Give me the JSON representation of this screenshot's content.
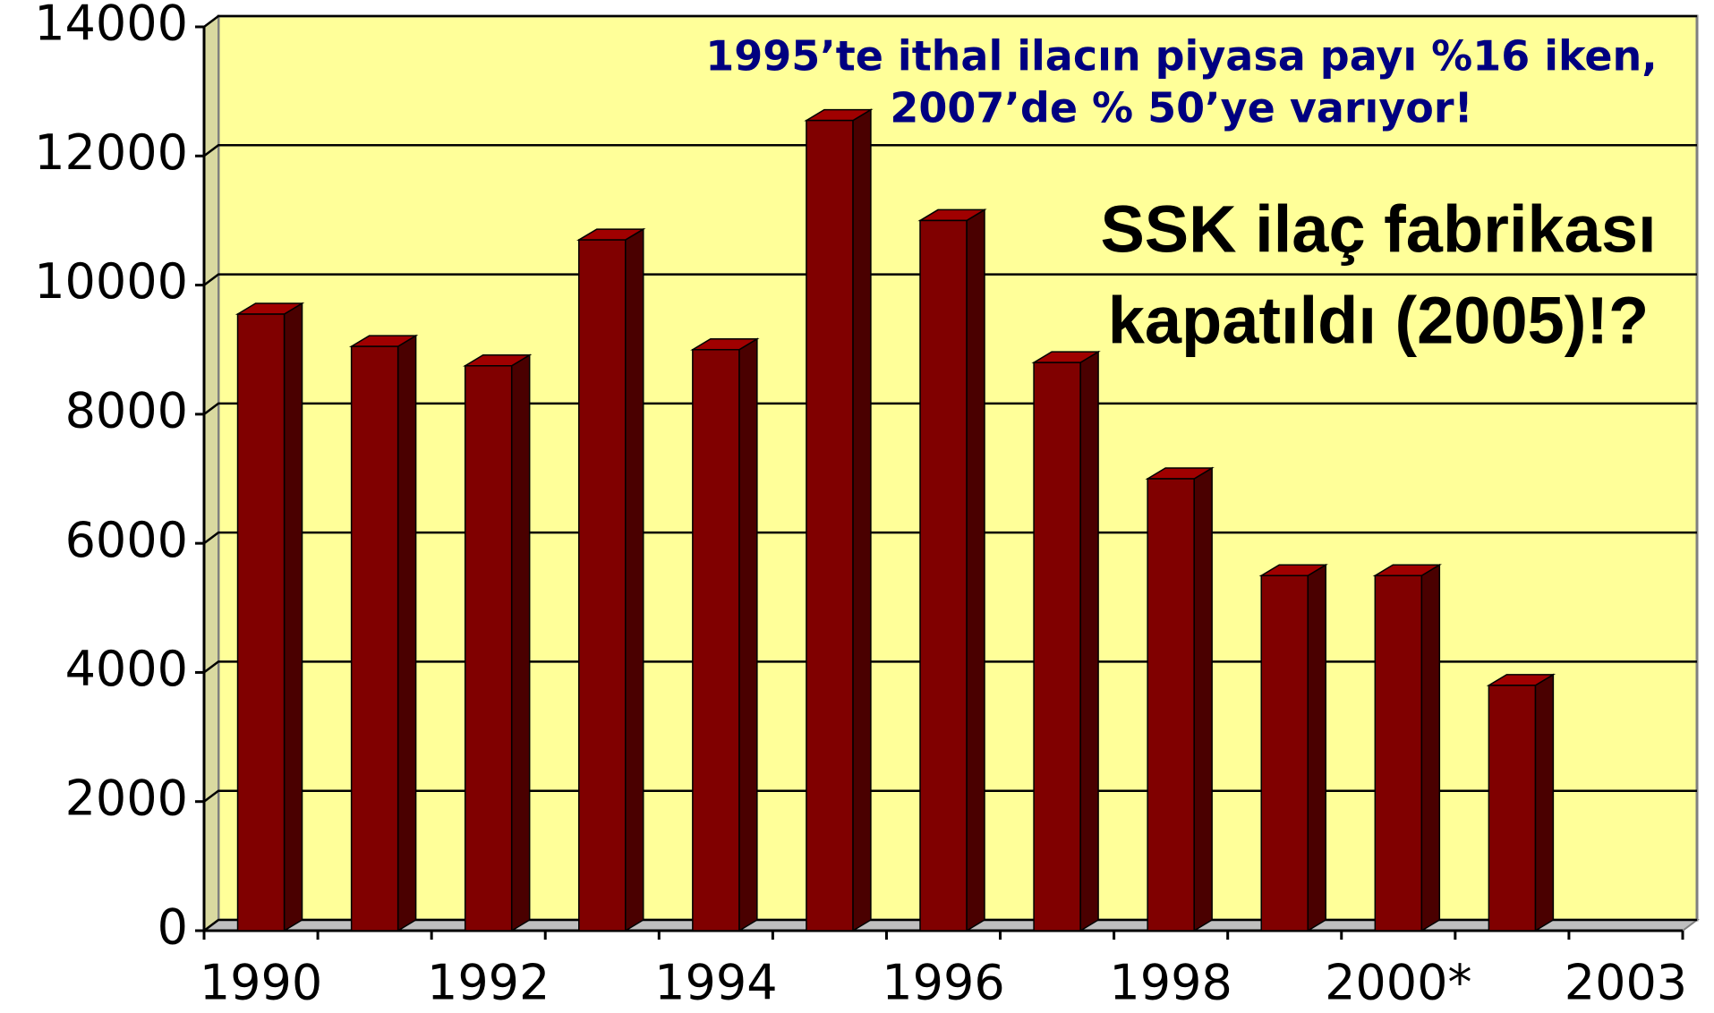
{
  "chart_data": {
    "type": "bar3d",
    "categories": [
      "1990",
      null,
      "1992",
      null,
      "1994",
      null,
      "1996",
      null,
      "1998",
      null,
      "2000*",
      null,
      "2003"
    ],
    "values": [
      9550,
      9050,
      8750,
      10700,
      9000,
      12550,
      11000,
      8800,
      7000,
      5500,
      5500,
      3800,
      null
    ],
    "color": "#800000",
    "ylim": [
      0,
      14000
    ],
    "yticks": [
      0,
      2000,
      4000,
      6000,
      8000,
      10000,
      12000,
      14000
    ],
    "grid": true,
    "annotations": [
      {
        "lines": [
          "1995’te ithal ilacın piyasa payı %16 iken,",
          "2007’de % 50’ye varıyor!"
        ],
        "color": "#000080"
      },
      {
        "lines": [
          "SSK ilaç fabrikası",
          "kapatıldı (2005)!?"
        ],
        "color": "#000000"
      }
    ]
  }
}
